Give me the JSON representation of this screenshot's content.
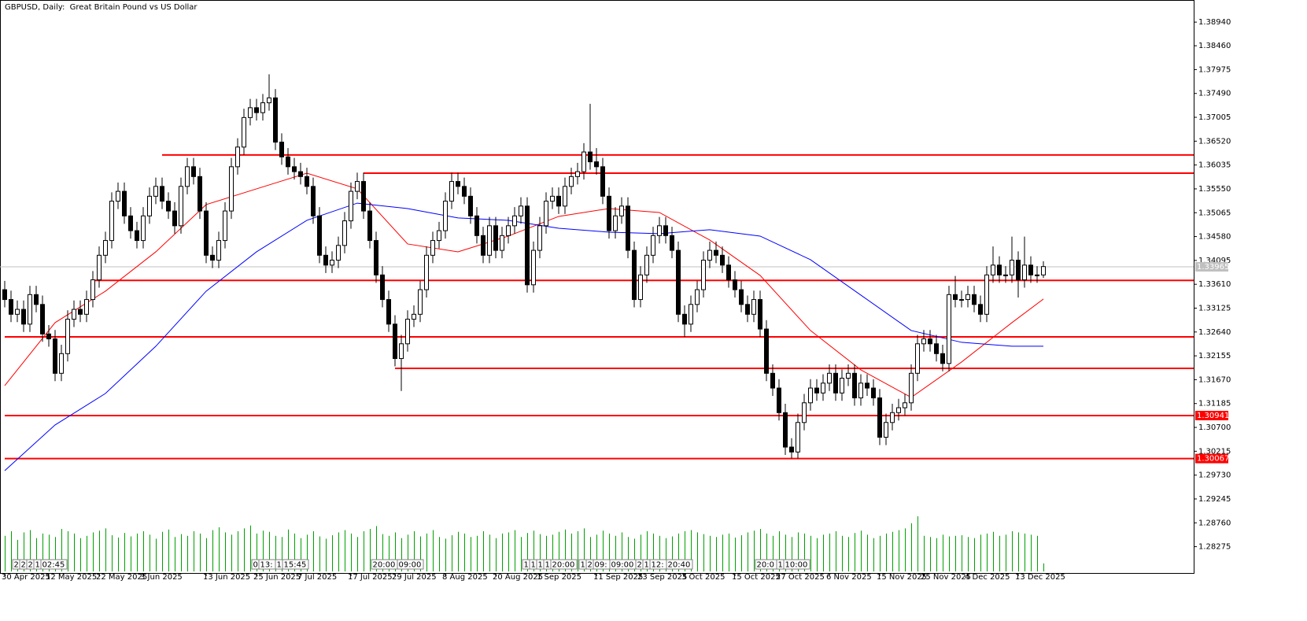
{
  "chart_data": {
    "type": "candlestick",
    "title": "GBPUSD, Daily:  Great Britain Pound vs US Dollar",
    "categories": [
      "30 Apr 2025",
      null,
      null,
      null,
      null,
      null,
      null,
      "12 May 2025",
      null,
      null,
      null,
      null,
      null,
      null,
      null,
      "22 May 2025",
      null,
      null,
      null,
      null,
      null,
      null,
      "3 Jun 2025",
      null,
      null,
      null,
      null,
      null,
      null,
      null,
      null,
      null,
      "13 Jun 2025",
      null,
      null,
      null,
      null,
      null,
      null,
      null,
      "25 Jun 2025",
      null,
      null,
      null,
      null,
      null,
      null,
      "7 Jul 2025",
      null,
      null,
      null,
      null,
      null,
      null,
      null,
      "17 Jul 2025",
      null,
      null,
      null,
      null,
      null,
      null,
      "29 Jul 2025",
      null,
      null,
      null,
      null,
      null,
      null,
      null,
      "8 Aug 2025",
      null,
      null,
      null,
      null,
      null,
      null,
      null,
      "20 Aug 2025",
      null,
      null,
      null,
      null,
      null,
      null,
      "1 Sep 2025",
      null,
      null,
      null,
      null,
      null,
      null,
      null,
      null,
      "11 Sep 2025",
      null,
      null,
      null,
      null,
      null,
      null,
      "23 Sep 2025",
      null,
      null,
      null,
      null,
      null,
      null,
      "3 Oct 2025",
      null,
      null,
      null,
      null,
      null,
      null,
      null,
      "15 Oct 2025",
      null,
      null,
      null,
      null,
      null,
      null,
      "27 Oct 2025",
      null,
      null,
      null,
      null,
      null,
      null,
      null,
      "6 Nov 2025",
      null,
      null,
      null,
      null,
      null,
      null,
      null,
      "15 Nov 2025",
      null,
      null,
      null,
      null,
      null,
      null,
      "25 Nov 2025",
      null,
      null,
      null,
      null,
      null,
      null,
      "4 Dec 2025",
      null,
      null,
      null,
      null,
      null,
      null,
      null,
      "13 Dec 2025",
      null,
      null,
      null,
      null
    ],
    "open": [
      1.335,
      1.333,
      1.33,
      1.331,
      1.328,
      1.334,
      1.332,
      1.326,
      1.325,
      1.318,
      1.322,
      1.329,
      1.331,
      1.33,
      1.333,
      1.337,
      1.342,
      1.345,
      1.353,
      1.355,
      1.35,
      1.347,
      1.345,
      1.35,
      1.354,
      1.356,
      1.353,
      1.351,
      1.348,
      1.356,
      1.36,
      1.358,
      1.351,
      1.342,
      1.341,
      1.345,
      1.351,
      1.36,
      1.364,
      1.37,
      1.372,
      1.371,
      1.373,
      1.374,
      1.365,
      1.362,
      1.36,
      1.359,
      1.358,
      1.356,
      1.35,
      1.342,
      1.34,
      1.341,
      1.344,
      1.349,
      1.355,
      1.357,
      1.351,
      1.345,
      1.338,
      1.333,
      1.328,
      1.321,
      1.324,
      1.329,
      1.33,
      1.335,
      1.342,
      1.345,
      1.347,
      1.353,
      1.357,
      1.356,
      1.354,
      1.35,
      1.346,
      1.342,
      1.348,
      1.343,
      1.346,
      1.348,
      1.35,
      1.352,
      1.336,
      1.343,
      1.348,
      1.353,
      1.354,
      1.352,
      1.356,
      1.358,
      1.359,
      1.363,
      1.361,
      1.36,
      1.354,
      1.347,
      1.35,
      1.352,
      1.343,
      1.333,
      1.338,
      1.342,
      1.346,
      1.348,
      1.346,
      1.343,
      1.33,
      1.328,
      1.332,
      1.335,
      1.341,
      1.343,
      1.342,
      1.34,
      1.337,
      1.335,
      1.332,
      1.33,
      1.333,
      1.327,
      1.318,
      1.315,
      1.31,
      1.303,
      1.302,
      1.308,
      1.312,
      1.315,
      1.314,
      1.316,
      1.318,
      1.314,
      1.317,
      1.318,
      1.313,
      1.316,
      1.315,
      1.313,
      1.305,
      1.308,
      1.31,
      1.311,
      1.312,
      1.318,
      1.324,
      1.325,
      1.324,
      1.322,
      1.32,
      1.334,
      1.333,
      1.333,
      1.334,
      1.332,
      1.33,
      1.338,
      1.34,
      1.338,
      1.338,
      1.341,
      1.337,
      1.34,
      1.338,
      1.338
    ],
    "high": [
      1.3368,
      1.3348,
      1.3328,
      1.3328,
      1.3358,
      1.3358,
      1.3338,
      1.3278,
      1.3268,
      1.3238,
      1.3308,
      1.3328,
      1.3328,
      1.3348,
      1.3388,
      1.3438,
      1.3468,
      1.3548,
      1.3568,
      1.3568,
      1.3518,
      1.3488,
      1.3518,
      1.3558,
      1.3578,
      1.3578,
      1.3548,
      1.3528,
      1.3578,
      1.3618,
      1.3618,
      1.3598,
      1.3528,
      1.3438,
      1.3468,
      1.3528,
      1.3618,
      1.3658,
      1.3718,
      1.3738,
      1.3738,
      1.3748,
      1.3788,
      1.3758,
      1.3668,
      1.3638,
      1.3618,
      1.3608,
      1.3598,
      1.3578,
      1.3518,
      1.3438,
      1.3428,
      1.3458,
      1.3508,
      1.3568,
      1.3588,
      1.3588,
      1.3528,
      1.3468,
      1.3398,
      1.3348,
      1.3298,
      1.3258,
      1.3308,
      1.3318,
      1.3368,
      1.3438,
      1.3468,
      1.3488,
      1.3548,
      1.3588,
      1.3588,
      1.3578,
      1.3558,
      1.3518,
      1.3478,
      1.3498,
      1.3498,
      1.3478,
      1.3498,
      1.3518,
      1.3538,
      1.3538,
      1.3448,
      1.3498,
      1.3548,
      1.3558,
      1.3558,
      1.3578,
      1.3598,
      1.3608,
      1.3648,
      1.3728,
      1.3638,
      1.3618,
      1.3558,
      1.3518,
      1.3538,
      1.3538,
      1.3448,
      1.3398,
      1.3438,
      1.3478,
      1.3498,
      1.3498,
      1.3478,
      1.3448,
      1.3318,
      1.3338,
      1.3368,
      1.3428,
      1.3448,
      1.3448,
      1.3438,
      1.3418,
      1.3388,
      1.3368,
      1.3338,
      1.3348,
      1.3348,
      1.3288,
      1.3198,
      1.3168,
      1.3118,
      1.3048,
      1.3098,
      1.3138,
      1.3168,
      1.3168,
      1.3178,
      1.3198,
      1.3198,
      1.3188,
      1.3198,
      1.3198,
      1.3178,
      1.3178,
      1.3168,
      1.3148,
      1.3098,
      1.3118,
      1.3128,
      1.3138,
      1.3198,
      1.3258,
      1.3268,
      1.3268,
      1.3258,
      1.3238,
      1.3358,
      1.3378,
      1.3348,
      1.3358,
      1.3358,
      1.3338,
      1.3398,
      1.3438,
      1.3418,
      1.3398,
      1.3458,
      1.3428,
      1.3458,
      1.3418,
      1.3398,
      1.3408
    ],
    "low": [
      1.3314,
      1.3284,
      1.3284,
      1.3264,
      1.3264,
      1.3304,
      1.3244,
      1.3234,
      1.3164,
      1.3164,
      1.3204,
      1.3274,
      1.3284,
      1.3284,
      1.3314,
      1.3354,
      1.3404,
      1.3434,
      1.3514,
      1.3484,
      1.3454,
      1.3434,
      1.3434,
      1.3484,
      1.3524,
      1.3514,
      1.3494,
      1.3464,
      1.3464,
      1.3544,
      1.3564,
      1.3494,
      1.3404,
      1.3394,
      1.3394,
      1.3434,
      1.3494,
      1.3584,
      1.3624,
      1.3684,
      1.3694,
      1.3694,
      1.3714,
      1.3634,
      1.3604,
      1.3584,
      1.3574,
      1.3564,
      1.3544,
      1.3484,
      1.3404,
      1.3384,
      1.3384,
      1.3394,
      1.3424,
      1.3474,
      1.3534,
      1.3494,
      1.3434,
      1.3364,
      1.3314,
      1.3264,
      1.3194,
      1.3144,
      1.3224,
      1.3274,
      1.3284,
      1.3334,
      1.3404,
      1.3434,
      1.3454,
      1.3514,
      1.3544,
      1.3524,
      1.3484,
      1.3444,
      1.3404,
      1.3404,
      1.3414,
      1.3414,
      1.3444,
      1.3464,
      1.3484,
      1.3344,
      1.3344,
      1.3414,
      1.3464,
      1.3514,
      1.3504,
      1.3504,
      1.3544,
      1.3564,
      1.3574,
      1.3594,
      1.3584,
      1.3524,
      1.3454,
      1.3454,
      1.3484,
      1.3414,
      1.3314,
      1.3314,
      1.3364,
      1.3404,
      1.3444,
      1.3444,
      1.3414,
      1.3284,
      1.3254,
      1.3264,
      1.3304,
      1.3334,
      1.3394,
      1.3404,
      1.3384,
      1.3354,
      1.3334,
      1.3304,
      1.3284,
      1.3284,
      1.3254,
      1.3164,
      1.3134,
      1.3084,
      1.3014,
      1.3007,
      1.3007,
      1.3064,
      1.3104,
      1.3124,
      1.3124,
      1.3144,
      1.3124,
      1.3124,
      1.3154,
      1.3114,
      1.3114,
      1.3134,
      1.3114,
      1.3034,
      1.3034,
      1.3064,
      1.3084,
      1.3094,
      1.3104,
      1.3164,
      1.3224,
      1.3224,
      1.3204,
      1.3184,
      1.3184,
      1.3314,
      1.3314,
      1.3314,
      1.3304,
      1.3284,
      1.3284,
      1.3364,
      1.3364,
      1.3364,
      1.3364,
      1.3334,
      1.3354,
      1.3364,
      1.3364,
      1.3374
    ],
    "close": [
      1.333,
      1.33,
      1.331,
      1.328,
      1.334,
      1.332,
      1.326,
      1.325,
      1.318,
      1.322,
      1.329,
      1.331,
      1.33,
      1.333,
      1.337,
      1.342,
      1.345,
      1.353,
      1.355,
      1.35,
      1.347,
      1.345,
      1.35,
      1.354,
      1.356,
      1.353,
      1.351,
      1.348,
      1.356,
      1.36,
      1.358,
      1.351,
      1.342,
      1.341,
      1.345,
      1.351,
      1.36,
      1.364,
      1.37,
      1.372,
      1.371,
      1.373,
      1.374,
      1.365,
      1.362,
      1.36,
      1.359,
      1.358,
      1.356,
      1.35,
      1.342,
      1.34,
      1.341,
      1.344,
      1.349,
      1.355,
      1.357,
      1.351,
      1.345,
      1.338,
      1.333,
      1.328,
      1.321,
      1.324,
      1.329,
      1.33,
      1.335,
      1.342,
      1.345,
      1.347,
      1.353,
      1.357,
      1.356,
      1.354,
      1.35,
      1.346,
      1.342,
      1.348,
      1.343,
      1.346,
      1.348,
      1.35,
      1.352,
      1.336,
      1.343,
      1.348,
      1.353,
      1.354,
      1.352,
      1.356,
      1.358,
      1.359,
      1.363,
      1.361,
      1.36,
      1.354,
      1.347,
      1.35,
      1.352,
      1.343,
      1.333,
      1.338,
      1.342,
      1.346,
      1.348,
      1.346,
      1.343,
      1.33,
      1.328,
      1.332,
      1.335,
      1.341,
      1.343,
      1.342,
      1.34,
      1.337,
      1.335,
      1.332,
      1.33,
      1.333,
      1.327,
      1.318,
      1.315,
      1.31,
      1.303,
      1.302,
      1.308,
      1.312,
      1.315,
      1.314,
      1.316,
      1.318,
      1.314,
      1.317,
      1.318,
      1.313,
      1.316,
      1.315,
      1.313,
      1.305,
      1.308,
      1.31,
      1.311,
      1.312,
      1.318,
      1.324,
      1.325,
      1.324,
      1.322,
      1.32,
      1.334,
      1.333,
      1.333,
      1.334,
      1.332,
      1.33,
      1.338,
      1.34,
      1.338,
      1.338,
      1.341,
      1.337,
      1.34,
      1.338,
      1.338,
      1.3397
    ],
    "volume": [
      62,
      70,
      55,
      68,
      72,
      58,
      66,
      64,
      60,
      74,
      70,
      66,
      58,
      62,
      68,
      71,
      75,
      63,
      59,
      67,
      61,
      66,
      70,
      64,
      57,
      69,
      73,
      60,
      65,
      62,
      70,
      66,
      58,
      72,
      77,
      68,
      64,
      70,
      75,
      80,
      66,
      71,
      69,
      62,
      60,
      73,
      66,
      58,
      64,
      70,
      61,
      57,
      63,
      68,
      72,
      66,
      60,
      70,
      74,
      79,
      65,
      62,
      68,
      58,
      64,
      70,
      61,
      66,
      72,
      60,
      57,
      63,
      69,
      66,
      60,
      62,
      70,
      64,
      58,
      66,
      68,
      72,
      60,
      67,
      71,
      65,
      62,
      64,
      69,
      73,
      66,
      70,
      75,
      60,
      64,
      71,
      66,
      62,
      68,
      60,
      57,
      64,
      70,
      66,
      62,
      58,
      61,
      66,
      70,
      72,
      68,
      65,
      62,
      60,
      64,
      66,
      59,
      63,
      68,
      71,
      74,
      66,
      62,
      70,
      64,
      60,
      68,
      66,
      62,
      58,
      64,
      66,
      70,
      62,
      60,
      67,
      71,
      64,
      58,
      62,
      66,
      69,
      72,
      75,
      84,
      96,
      62,
      60,
      58,
      64,
      61,
      62,
      63,
      60,
      58,
      64,
      66,
      69,
      62,
      64,
      70,
      68,
      66,
      64,
      62,
      14
    ],
    "volume_color": "#00a000",
    "moving_averages": [
      {
        "color": "#ff0000",
        "x": [
          0,
          8,
          16,
          24,
          32,
          40,
          48,
          56,
          64,
          72,
          80,
          88,
          96,
          104,
          112,
          120,
          128,
          136,
          144,
          152,
          160,
          165
        ],
        "values": [
          1.3155,
          1.3283,
          1.3347,
          1.3427,
          1.3523,
          1.3555,
          1.3587,
          1.3555,
          1.3443,
          1.3427,
          1.3459,
          1.3499,
          1.3515,
          1.3507,
          1.3451,
          1.3379,
          1.3267,
          1.3187,
          1.3131,
          1.3203,
          1.3283,
          1.3331
        ]
      },
      {
        "color": "#0000ff",
        "x": [
          0,
          8,
          16,
          24,
          32,
          40,
          48,
          56,
          64,
          72,
          80,
          88,
          96,
          104,
          112,
          120,
          128,
          136,
          144,
          152,
          160,
          165
        ],
        "values": [
          1.2982,
          1.3075,
          1.3139,
          1.3235,
          1.3347,
          1.3427,
          1.3491,
          1.3526,
          1.3515,
          1.3496,
          1.3491,
          1.3475,
          1.3467,
          1.3464,
          1.3472,
          1.3459,
          1.3411,
          1.3339,
          1.3267,
          1.3243,
          1.3235,
          1.3235
        ]
      }
    ],
    "levels": [
      {
        "value": 1.3624,
        "start": 25
      },
      {
        "value": 1.3587,
        "start": 57
      },
      {
        "value": 1.3369,
        "start": 14
      },
      {
        "value": 1.3254,
        "start": 0
      },
      {
        "value": 1.319,
        "start": 62
      },
      {
        "value": 1.30941,
        "start": 0,
        "show_label": true
      },
      {
        "value": 1.30067,
        "start": 0,
        "show_label": true
      }
    ],
    "level_color": "#ff0000",
    "last_price": 1.33965,
    "ylim": [
      1.2774,
      1.3939
    ],
    "yticks": [
      {
        "value": 1.3894,
        "label": "1.38940"
      },
      {
        "value": 1.3846,
        "label": "1.38460"
      },
      1.37975,
      {
        "value": 1.3749,
        "label": "1.37490"
      },
      1.37005,
      {
        "value": 1.3652,
        "label": "1.36520"
      },
      1.36035,
      {
        "value": 1.3555,
        "label": "1.35550"
      },
      1.35065,
      {
        "value": 1.3458,
        "label": "1.34580"
      },
      1.34095,
      {
        "value": 1.3361,
        "label": "1.33610"
      },
      1.33125,
      {
        "value": 1.3264,
        "label": "1.32640"
      },
      1.32155,
      {
        "value": 1.3167,
        "label": "1.31670"
      },
      1.31185,
      {
        "value": 1.307,
        "label": "1.30700"
      },
      1.30215,
      {
        "value": 1.2973,
        "label": "1.29730"
      },
      1.29245,
      {
        "value": 1.2876,
        "label": "1.28760"
      },
      1.28275
    ],
    "time_labels": [
      {
        "index": 2,
        "texts": [
          "2",
          "2",
          "2",
          "1",
          "02:45"
        ]
      },
      {
        "index": 40,
        "texts": [
          "0",
          "13:",
          "1",
          "15:45"
        ]
      },
      {
        "index": 59,
        "texts": [
          "20:00",
          "09:00"
        ]
      },
      {
        "index": 83,
        "texts": [
          "1",
          "1",
          "1",
          "1",
          "20:00"
        ]
      },
      {
        "index": 92,
        "texts": [
          "1",
          "2",
          "09:",
          "09:00"
        ]
      },
      {
        "index": 101,
        "texts": [
          "2",
          "1",
          "12:",
          "20:40"
        ]
      },
      {
        "index": 120,
        "texts": [
          "20:0",
          "1",
          "10:00"
        ]
      }
    ]
  }
}
